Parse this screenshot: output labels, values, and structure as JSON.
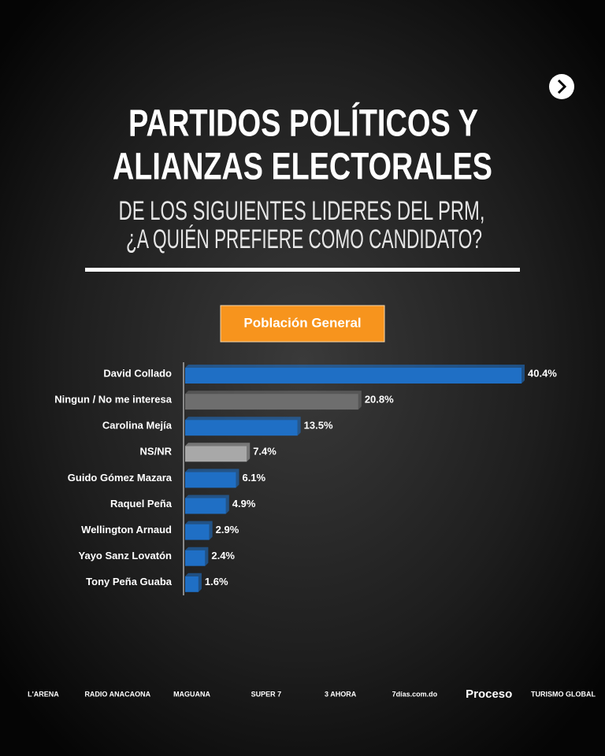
{
  "chart_data": {
    "type": "hbar",
    "title": [
      "PARTIDOS POLÍTICOS Y",
      "ALIANZAS ELECTORALES"
    ],
    "subtitle": [
      "DE LOS SIGUIENTES LIDERES DEL PRM,",
      "¿A QUIÉN PREFIERE COMO CANDIDATO?"
    ],
    "badge": "Población General",
    "categories": [
      "David Collado",
      "Ningun / No me interesa",
      "Carolina Mejía",
      "NS/NR",
      "Guido Gómez Mazara",
      "Raquel Peña",
      "Wellington Arnaud",
      "Yayo Sanz Lovatón",
      "Tony Peña Guaba"
    ],
    "values": [
      40.4,
      20.8,
      13.5,
      7.4,
      6.1,
      4.9,
      2.9,
      2.4,
      1.6
    ],
    "value_labels": [
      "40.4%",
      "20.8%",
      "13.5%",
      "7.4%",
      "6.1%",
      "4.9%",
      "2.9%",
      "2.4%",
      "1.6%"
    ],
    "colors": [
      "#1f6fc5",
      "#6e6e6e",
      "#1f6fc5",
      "#a8a8a8",
      "#1f6fc5",
      "#1f6fc5",
      "#1f6fc5",
      "#1f6fc5",
      "#1f6fc5"
    ],
    "footer_logos": [
      "L'ARENA",
      "RADIO ANACAONA",
      "MAGUANA",
      "SUPER 7",
      "3 AHORA",
      "7días.com.do",
      "Proceso",
      "TURISMO GLOBAL"
    ]
  }
}
